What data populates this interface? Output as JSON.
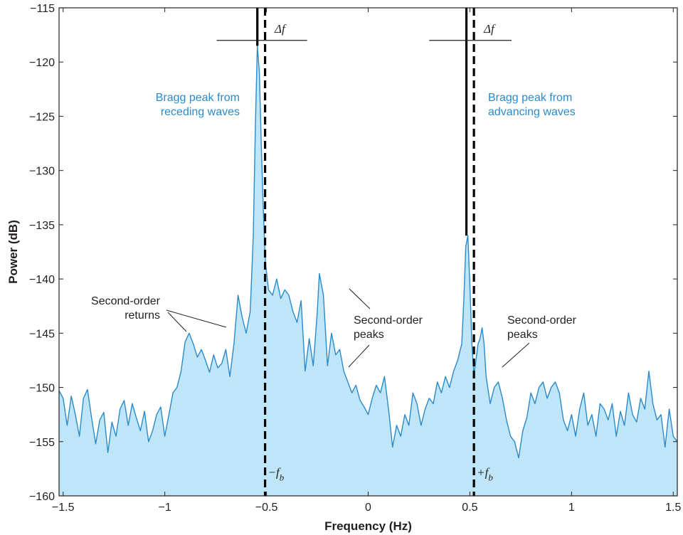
{
  "chart_data": {
    "type": "area",
    "xlabel": "Frequency (Hz)",
    "ylabel": "Power (dB)",
    "xlim": [
      -1.52,
      1.52
    ],
    "ylim": [
      -160,
      -115
    ],
    "xticks": [
      -1.5,
      -1,
      -0.5,
      0,
      0.5,
      1,
      1.5
    ],
    "xtick_labels": [
      "−1.5",
      "−1",
      "−0.5",
      "0",
      "0.5",
      "1",
      "1.5"
    ],
    "yticks": [
      -115,
      -120,
      -125,
      -130,
      -135,
      -140,
      -145,
      -150,
      -155,
      -160
    ],
    "ytick_labels": [
      "−115",
      "−120",
      "−125",
      "−130",
      "−135",
      "−140",
      "−145",
      "−150",
      "−155",
      "−160"
    ],
    "grid": false,
    "colors": {
      "fill": "#bfe6f8",
      "line": "#2b8acb",
      "text_blue": "#2b8acb",
      "axis": "#231f20"
    },
    "series": [
      {
        "points": [
          [
            -1.52,
            -150.3
          ],
          [
            -1.5,
            -151.0
          ],
          [
            -1.48,
            -153.5
          ],
          [
            -1.46,
            -150.8
          ],
          [
            -1.44,
            -152.5
          ],
          [
            -1.42,
            -154.5
          ],
          [
            -1.4,
            -151.0
          ],
          [
            -1.38,
            -150.2
          ],
          [
            -1.36,
            -152.8
          ],
          [
            -1.34,
            -155.2
          ],
          [
            -1.32,
            -153.0
          ],
          [
            -1.3,
            -152.3
          ],
          [
            -1.28,
            -156.0
          ],
          [
            -1.26,
            -153.2
          ],
          [
            -1.24,
            -154.5
          ],
          [
            -1.22,
            -152.0
          ],
          [
            -1.2,
            -151.2
          ],
          [
            -1.18,
            -153.5
          ],
          [
            -1.16,
            -151.5
          ],
          [
            -1.14,
            -152.8
          ],
          [
            -1.12,
            -154.0
          ],
          [
            -1.1,
            -152.2
          ],
          [
            -1.08,
            -155.0
          ],
          [
            -1.06,
            -154.0
          ],
          [
            -1.04,
            -152.5
          ],
          [
            -1.02,
            -151.8
          ],
          [
            -1.0,
            -154.5
          ],
          [
            -0.98,
            -152.5
          ],
          [
            -0.96,
            -150.5
          ],
          [
            -0.94,
            -150.0
          ],
          [
            -0.92,
            -148.5
          ],
          [
            -0.9,
            -145.8
          ],
          [
            -0.88,
            -145.0
          ],
          [
            -0.86,
            -146.0
          ],
          [
            -0.84,
            -147.2
          ],
          [
            -0.82,
            -146.5
          ],
          [
            -0.8,
            -147.5
          ],
          [
            -0.78,
            -148.6
          ],
          [
            -0.76,
            -147.0
          ],
          [
            -0.74,
            -148.2
          ],
          [
            -0.72,
            -147.8
          ],
          [
            -0.7,
            -146.5
          ],
          [
            -0.68,
            -149.0
          ],
          [
            -0.66,
            -146.0
          ],
          [
            -0.64,
            -141.5
          ],
          [
            -0.62,
            -143.5
          ],
          [
            -0.6,
            -145.0
          ],
          [
            -0.58,
            -143.0
          ],
          [
            -0.565,
            -136.0
          ],
          [
            -0.555,
            -126.0
          ],
          [
            -0.545,
            -118.5
          ],
          [
            -0.535,
            -121.0
          ],
          [
            -0.525,
            -128.0
          ],
          [
            -0.515,
            -134.0
          ],
          [
            -0.505,
            -138.5
          ],
          [
            -0.49,
            -141.0
          ],
          [
            -0.47,
            -141.5
          ],
          [
            -0.45,
            -140.0
          ],
          [
            -0.43,
            -141.8
          ],
          [
            -0.41,
            -141.0
          ],
          [
            -0.39,
            -141.5
          ],
          [
            -0.37,
            -143.0
          ],
          [
            -0.35,
            -144.0
          ],
          [
            -0.33,
            -142.0
          ],
          [
            -0.31,
            -148.5
          ],
          [
            -0.29,
            -145.5
          ],
          [
            -0.27,
            -148.0
          ],
          [
            -0.25,
            -143.0
          ],
          [
            -0.24,
            -139.5
          ],
          [
            -0.22,
            -141.5
          ],
          [
            -0.2,
            -148.0
          ],
          [
            -0.18,
            -145.0
          ],
          [
            -0.16,
            -147.0
          ],
          [
            -0.14,
            -146.5
          ],
          [
            -0.12,
            -148.5
          ],
          [
            -0.1,
            -149.5
          ],
          [
            -0.08,
            -150.5
          ],
          [
            -0.06,
            -149.8
          ],
          [
            -0.04,
            -151.2
          ],
          [
            -0.02,
            -151.8
          ],
          [
            0.0,
            -152.5
          ],
          [
            0.02,
            -151.0
          ],
          [
            0.04,
            -149.8
          ],
          [
            0.06,
            -150.5
          ],
          [
            0.08,
            -149.0
          ],
          [
            0.1,
            -152.0
          ],
          [
            0.12,
            -155.5
          ],
          [
            0.14,
            -153.5
          ],
          [
            0.16,
            -154.5
          ],
          [
            0.18,
            -152.5
          ],
          [
            0.2,
            -153.5
          ],
          [
            0.22,
            -150.5
          ],
          [
            0.24,
            -151.5
          ],
          [
            0.26,
            -153.5
          ],
          [
            0.28,
            -152.0
          ],
          [
            0.3,
            -151.0
          ],
          [
            0.32,
            -151.5
          ],
          [
            0.34,
            -149.5
          ],
          [
            0.36,
            -150.5
          ],
          [
            0.38,
            -149.0
          ],
          [
            0.4,
            -150.0
          ],
          [
            0.42,
            -148.5
          ],
          [
            0.44,
            -147.5
          ],
          [
            0.46,
            -146.0
          ],
          [
            0.47,
            -142.0
          ],
          [
            0.48,
            -137.0
          ],
          [
            0.49,
            -136.0
          ],
          [
            0.5,
            -140.5
          ],
          [
            0.51,
            -146.0
          ],
          [
            0.52,
            -148.8
          ],
          [
            0.53,
            -147.5
          ],
          [
            0.54,
            -146.0
          ],
          [
            0.55,
            -145.5
          ],
          [
            0.56,
            -144.5
          ],
          [
            0.57,
            -146.0
          ],
          [
            0.58,
            -149.0
          ],
          [
            0.6,
            -151.5
          ],
          [
            0.62,
            -150.0
          ],
          [
            0.64,
            -149.5
          ],
          [
            0.66,
            -151.0
          ],
          [
            0.68,
            -153.0
          ],
          [
            0.7,
            -154.5
          ],
          [
            0.72,
            -155.0
          ],
          [
            0.74,
            -156.5
          ],
          [
            0.76,
            -154.0
          ],
          [
            0.78,
            -152.8
          ],
          [
            0.8,
            -150.5
          ],
          [
            0.82,
            -151.5
          ],
          [
            0.84,
            -150.0
          ],
          [
            0.86,
            -149.5
          ],
          [
            0.88,
            -151.0
          ],
          [
            0.9,
            -150.0
          ],
          [
            0.92,
            -149.5
          ],
          [
            0.94,
            -150.5
          ],
          [
            0.96,
            -153.0
          ],
          [
            0.98,
            -154.0
          ],
          [
            1.0,
            -152.5
          ],
          [
            1.02,
            -154.5
          ],
          [
            1.04,
            -152.0
          ],
          [
            1.06,
            -150.5
          ],
          [
            1.08,
            -153.5
          ],
          [
            1.1,
            -152.5
          ],
          [
            1.12,
            -154.5
          ],
          [
            1.14,
            -151.5
          ],
          [
            1.16,
            -152.0
          ],
          [
            1.18,
            -153.0
          ],
          [
            1.2,
            -151.5
          ],
          [
            1.22,
            -154.5
          ],
          [
            1.24,
            -152.2
          ],
          [
            1.26,
            -153.5
          ],
          [
            1.28,
            -150.5
          ],
          [
            1.3,
            -152.5
          ],
          [
            1.32,
            -153.2
          ],
          [
            1.34,
            -151.0
          ],
          [
            1.36,
            -152.0
          ],
          [
            1.38,
            -148.5
          ],
          [
            1.4,
            -151.5
          ],
          [
            1.42,
            -153.0
          ],
          [
            1.44,
            -152.5
          ],
          [
            1.46,
            -155.5
          ],
          [
            1.48,
            -152.0
          ],
          [
            1.5,
            -154.5
          ],
          [
            1.52,
            -155.0
          ]
        ]
      }
    ],
    "reference_lines": [
      {
        "kind": "solid",
        "x": -0.545,
        "y_from": -115,
        "y_to": -118.5
      },
      {
        "kind": "dashed",
        "x": -0.507,
        "y_from": -115,
        "y_to": -160,
        "label": "−f",
        "sub": "b"
      },
      {
        "kind": "solid",
        "x": 0.483,
        "y_from": -115,
        "y_to": -136.0
      },
      {
        "kind": "dashed",
        "x": 0.52,
        "y_from": -115,
        "y_to": -160,
        "label": "+f",
        "sub": "b"
      }
    ],
    "delta_brackets": [
      {
        "label": "Δf",
        "y": -118.0,
        "x_left": -0.745,
        "x_right": -0.3
      },
      {
        "label": "Δf",
        "y": -118.0,
        "x_left": 0.3,
        "x_right": 0.705
      }
    ],
    "annotations": [
      {
        "lines": [
          "Bragg peak from",
          "receding waves"
        ],
        "color": "blue",
        "anchor": "end"
      },
      {
        "lines": [
          "Bragg peak from",
          "advancing waves"
        ],
        "color": "blue",
        "anchor": "start"
      },
      {
        "lines": [
          "Second-order",
          "returns"
        ],
        "color": "dark",
        "anchor": "end"
      },
      {
        "lines": [
          "Second-order",
          "peaks"
        ],
        "color": "dark",
        "anchor": "start"
      },
      {
        "lines": [
          "Second-order",
          "peaks"
        ],
        "color": "dark",
        "anchor": "start"
      }
    ]
  }
}
